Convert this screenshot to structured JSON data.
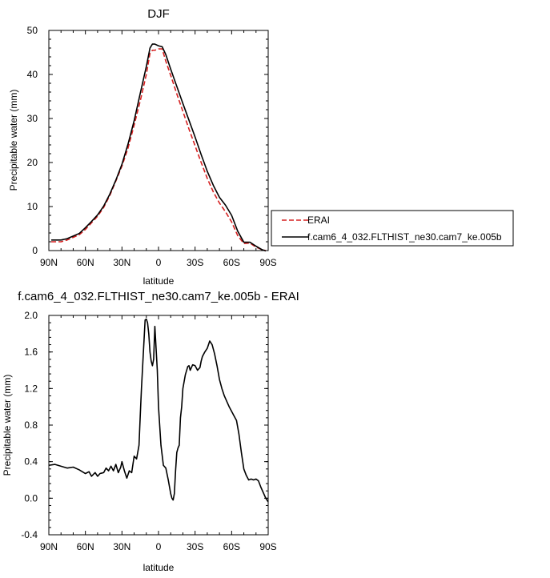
{
  "chart_data": [
    {
      "type": "line",
      "title": "DJF",
      "xlabel": "latitude",
      "ylabel": "Precipitable water (mm)",
      "x_ticks": [
        90,
        60,
        30,
        0,
        -30,
        -60,
        -90
      ],
      "x_tick_labels": [
        "90N",
        "60N",
        "30N",
        "0",
        "30S",
        "60S",
        "90S"
      ],
      "xlim": [
        90,
        -90
      ],
      "ylim": [
        0,
        50
      ],
      "y_ticks": [
        0,
        10,
        20,
        30,
        40,
        50
      ],
      "y_tick_labels": [
        "0",
        "10",
        "20",
        "30",
        "40",
        "50"
      ],
      "legend": {
        "placement": "right-of-plot",
        "entries": [
          "ERAI",
          "f.cam6_4_032.FLTHIST_ne30.cam7_ke.005b"
        ]
      },
      "series": [
        {
          "name": "ERAI",
          "color": "#d62020",
          "dash": "dashed",
          "x": [
            88,
            80,
            75,
            70,
            65,
            60,
            55,
            50,
            45,
            40,
            35,
            30,
            25,
            20,
            15,
            10,
            7,
            5,
            3,
            0,
            -3,
            -6,
            -10,
            -15,
            -20,
            -25,
            -30,
            -35,
            -40,
            -45,
            -50,
            -55,
            -60,
            -65,
            -70,
            -75,
            -80,
            -85,
            -88
          ],
          "y": [
            2.0,
            2.0,
            2.4,
            3.0,
            3.6,
            4.8,
            6.3,
            7.8,
            9.8,
            12.5,
            15.8,
            19.2,
            23.3,
            28.5,
            34.0,
            40.0,
            44.8,
            45.5,
            45.5,
            45.8,
            45.8,
            43.0,
            39.8,
            35.6,
            31.6,
            27.6,
            23.8,
            20.0,
            16.4,
            13.3,
            10.8,
            8.8,
            6.5,
            3.4,
            1.6,
            1.7,
            0.8,
            0.2,
            0.0
          ]
        },
        {
          "name": "f.cam6_4_032.FLTHIST_ne30.cam7_ke.005b",
          "color": "#000000",
          "dash": "solid",
          "x": [
            88,
            80,
            75,
            70,
            65,
            60,
            55,
            50,
            45,
            40,
            35,
            30,
            25,
            20,
            15,
            10,
            7,
            5,
            3,
            0,
            -3,
            -6,
            -10,
            -15,
            -20,
            -25,
            -30,
            -35,
            -40,
            -45,
            -50,
            -55,
            -60,
            -65,
            -70,
            -75,
            -80,
            -85,
            -88
          ],
          "y": [
            2.4,
            2.4,
            2.7,
            3.3,
            3.9,
            5.2,
            6.6,
            8.1,
            10.1,
            12.8,
            16.0,
            19.6,
            24.2,
            29.5,
            35.7,
            41.8,
            46.0,
            46.9,
            46.9,
            46.5,
            46.3,
            44.5,
            41.2,
            37.3,
            33.4,
            29.6,
            25.8,
            21.8,
            18.0,
            14.8,
            12.1,
            10.3,
            8.0,
            4.4,
            1.9,
            1.9,
            1.0,
            0.2,
            -0.1
          ]
        }
      ]
    },
    {
      "type": "line",
      "title": "f.cam6_4_032.FLTHIST_ne30.cam7_ke.005b - ERAI",
      "xlabel": "latitude",
      "ylabel": "Precipitable water (mm)",
      "x_ticks": [
        90,
        60,
        30,
        0,
        -30,
        -60,
        -90
      ],
      "x_tick_labels": [
        "90N",
        "60N",
        "30N",
        "0",
        "30S",
        "60S",
        "90S"
      ],
      "xlim": [
        90,
        -90
      ],
      "ylim": [
        -0.4,
        2.0
      ],
      "y_ticks": [
        -0.4,
        0.0,
        0.4,
        0.8,
        1.2,
        1.6,
        2.0
      ],
      "y_tick_labels": [
        "-0.4",
        "0.0",
        "0.4",
        "0.8",
        "1.2",
        "1.6",
        "2.0"
      ],
      "series": [
        {
          "color": "#000000",
          "dash": "solid",
          "x": [
            90,
            85,
            80,
            75,
            70,
            65,
            60,
            57,
            55,
            52,
            50,
            48,
            45,
            43,
            41,
            39,
            37,
            35,
            33,
            31,
            30,
            28,
            26,
            24,
            22,
            20,
            18,
            16,
            15,
            14,
            13,
            11,
            10,
            9,
            8,
            7,
            6,
            5,
            4,
            3,
            1,
            0,
            -2,
            -4,
            -6,
            -8,
            -10,
            -11,
            -12,
            -13,
            -14,
            -15,
            -16,
            -17,
            -18,
            -19,
            -20,
            -22,
            -24,
            -25,
            -26,
            -28,
            -30,
            -32,
            -34,
            -35,
            -36,
            -38,
            -40,
            -42,
            -44,
            -46,
            -48,
            -50,
            -52,
            -54,
            -56,
            -58,
            -60,
            -62,
            -64,
            -66,
            -68,
            -70,
            -72,
            -74,
            -76,
            -78,
            -80,
            -82,
            -84,
            -86,
            -88,
            -90
          ],
          "y": [
            0.36,
            0.37,
            0.35,
            0.33,
            0.34,
            0.31,
            0.27,
            0.29,
            0.24,
            0.28,
            0.24,
            0.27,
            0.28,
            0.33,
            0.3,
            0.35,
            0.3,
            0.37,
            0.28,
            0.34,
            0.4,
            0.3,
            0.22,
            0.3,
            0.28,
            0.46,
            0.43,
            0.58,
            0.9,
            1.2,
            1.45,
            1.95,
            1.96,
            1.92,
            1.8,
            1.6,
            1.5,
            1.45,
            1.52,
            1.88,
            1.4,
            1.0,
            0.58,
            0.36,
            0.33,
            0.2,
            0.05,
            0.0,
            -0.02,
            0.05,
            0.3,
            0.5,
            0.55,
            0.58,
            0.88,
            1.0,
            1.2,
            1.35,
            1.44,
            1.45,
            1.4,
            1.46,
            1.45,
            1.4,
            1.43,
            1.5,
            1.55,
            1.6,
            1.64,
            1.72,
            1.68,
            1.58,
            1.45,
            1.3,
            1.2,
            1.12,
            1.06,
            1.0,
            0.95,
            0.9,
            0.85,
            0.7,
            0.5,
            0.32,
            0.25,
            0.2,
            0.21,
            0.2,
            0.21,
            0.19,
            0.12,
            0.06,
            0.0,
            -0.04
          ]
        }
      ]
    }
  ]
}
